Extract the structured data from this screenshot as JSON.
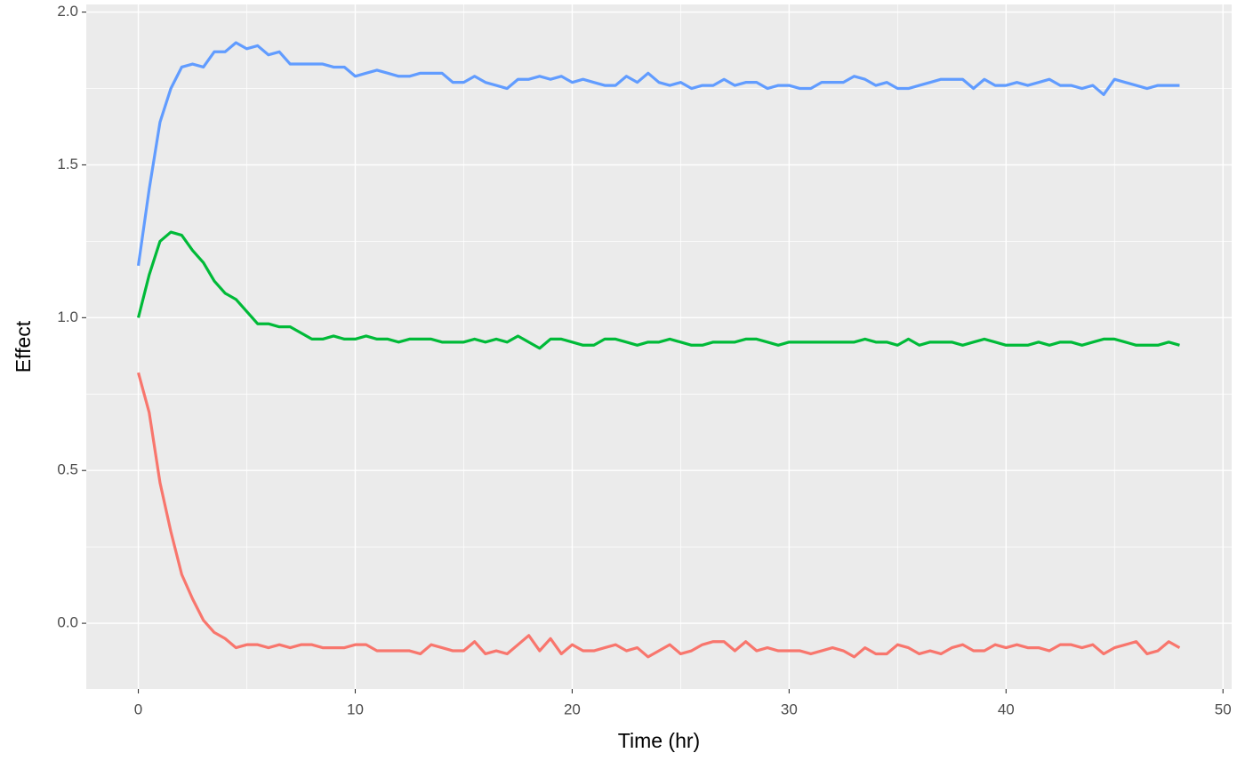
{
  "chart_data": {
    "type": "line",
    "x_label": "Time (hr)",
    "y_label": "Effect",
    "x": [
      0,
      0.5,
      1,
      1.5,
      2,
      2.5,
      3,
      3.5,
      4,
      4.5,
      5,
      5.5,
      6,
      6.5,
      7,
      7.5,
      8,
      8.5,
      9,
      9.5,
      10,
      10.5,
      11,
      11.5,
      12,
      12.5,
      13,
      13.5,
      14,
      14.5,
      15,
      15.5,
      16,
      16.5,
      17,
      17.5,
      18,
      18.5,
      19,
      19.5,
      20,
      20.5,
      21,
      21.5,
      22,
      22.5,
      23,
      23.5,
      24,
      24.5,
      25,
      25.5,
      26,
      26.5,
      27,
      27.5,
      28,
      28.5,
      29,
      29.5,
      30,
      30.5,
      31,
      31.5,
      32,
      32.5,
      33,
      33.5,
      34,
      34.5,
      35,
      35.5,
      36,
      36.5,
      37,
      37.5,
      38,
      38.5,
      39,
      39.5,
      40,
      40.5,
      41,
      41.5,
      42,
      42.5,
      43,
      43.5,
      44,
      44.5,
      45,
      45.5,
      46,
      46.5,
      47,
      47.5,
      48
    ],
    "series": [
      {
        "color": "#619cff",
        "values": [
          1.17,
          1.42,
          1.64,
          1.75,
          1.82,
          1.83,
          1.82,
          1.87,
          1.87,
          1.9,
          1.88,
          1.89,
          1.86,
          1.87,
          1.83,
          1.83,
          1.83,
          1.83,
          1.82,
          1.82,
          1.79,
          1.8,
          1.81,
          1.8,
          1.79,
          1.79,
          1.8,
          1.8,
          1.8,
          1.77,
          1.77,
          1.79,
          1.77,
          1.76,
          1.75,
          1.78,
          1.78,
          1.79,
          1.78,
          1.79,
          1.77,
          1.78,
          1.77,
          1.76,
          1.76,
          1.79,
          1.77,
          1.8,
          1.77,
          1.76,
          1.77,
          1.75,
          1.76,
          1.76,
          1.78,
          1.76,
          1.77,
          1.77,
          1.75,
          1.76,
          1.76,
          1.75,
          1.75,
          1.77,
          1.77,
          1.77,
          1.79,
          1.78,
          1.76,
          1.77,
          1.75,
          1.75,
          1.76,
          1.77,
          1.78,
          1.78,
          1.78,
          1.75,
          1.78,
          1.76,
          1.76,
          1.77,
          1.76,
          1.77,
          1.78,
          1.76,
          1.76,
          1.75,
          1.76,
          1.73,
          1.78,
          1.77,
          1.76,
          1.75,
          1.76,
          1.76,
          1.76
        ]
      },
      {
        "color": "#00ba38",
        "values": [
          1.0,
          1.14,
          1.25,
          1.28,
          1.27,
          1.22,
          1.18,
          1.12,
          1.08,
          1.06,
          1.02,
          0.98,
          0.98,
          0.97,
          0.97,
          0.95,
          0.93,
          0.93,
          0.94,
          0.93,
          0.93,
          0.94,
          0.93,
          0.93,
          0.92,
          0.93,
          0.93,
          0.93,
          0.92,
          0.92,
          0.92,
          0.93,
          0.92,
          0.93,
          0.92,
          0.94,
          0.92,
          0.9,
          0.93,
          0.93,
          0.92,
          0.91,
          0.91,
          0.93,
          0.93,
          0.92,
          0.91,
          0.92,
          0.92,
          0.93,
          0.92,
          0.91,
          0.91,
          0.92,
          0.92,
          0.92,
          0.93,
          0.93,
          0.92,
          0.91,
          0.92,
          0.92,
          0.92,
          0.92,
          0.92,
          0.92,
          0.92,
          0.93,
          0.92,
          0.92,
          0.91,
          0.93,
          0.91,
          0.92,
          0.92,
          0.92,
          0.91,
          0.92,
          0.93,
          0.92,
          0.91,
          0.91,
          0.91,
          0.92,
          0.91,
          0.92,
          0.92,
          0.91,
          0.92,
          0.93,
          0.93,
          0.92,
          0.91,
          0.91,
          0.91,
          0.92,
          0.91
        ]
      },
      {
        "color": "#f8766d",
        "values": [
          0.82,
          0.69,
          0.46,
          0.3,
          0.16,
          0.08,
          0.01,
          -0.03,
          -0.05,
          -0.08,
          -0.07,
          -0.07,
          -0.08,
          -0.07,
          -0.08,
          -0.07,
          -0.07,
          -0.08,
          -0.08,
          -0.08,
          -0.07,
          -0.07,
          -0.09,
          -0.09,
          -0.09,
          -0.09,
          -0.1,
          -0.07,
          -0.08,
          -0.09,
          -0.09,
          -0.06,
          -0.1,
          -0.09,
          -0.1,
          -0.07,
          -0.04,
          -0.09,
          -0.05,
          -0.1,
          -0.07,
          -0.09,
          -0.09,
          -0.08,
          -0.07,
          -0.09,
          -0.08,
          -0.11,
          -0.09,
          -0.07,
          -0.1,
          -0.09,
          -0.07,
          -0.06,
          -0.06,
          -0.09,
          -0.06,
          -0.09,
          -0.08,
          -0.09,
          -0.09,
          -0.09,
          -0.1,
          -0.09,
          -0.08,
          -0.09,
          -0.11,
          -0.08,
          -0.1,
          -0.1,
          -0.07,
          -0.08,
          -0.1,
          -0.09,
          -0.1,
          -0.08,
          -0.07,
          -0.09,
          -0.09,
          -0.07,
          -0.08,
          -0.07,
          -0.08,
          -0.08,
          -0.09,
          -0.07,
          -0.07,
          -0.08,
          -0.07,
          -0.1,
          -0.08,
          -0.07,
          -0.06,
          -0.1,
          -0.09,
          -0.06,
          -0.08
        ]
      }
    ],
    "xlim": [
      -2.4,
      50.4
    ],
    "xticks": [
      0,
      10,
      20,
      30,
      40,
      50
    ],
    "ylim": [
      -0.215,
      2.025
    ],
    "yticks": [
      {
        "value": 0,
        "label": "0.0"
      },
      {
        "value": 0.5,
        "label": "0.5"
      },
      {
        "value": 1,
        "label": "1.0"
      },
      {
        "value": 1.5,
        "label": "1.5"
      },
      {
        "value": 2,
        "label": "2.0"
      }
    ],
    "grid": true
  }
}
